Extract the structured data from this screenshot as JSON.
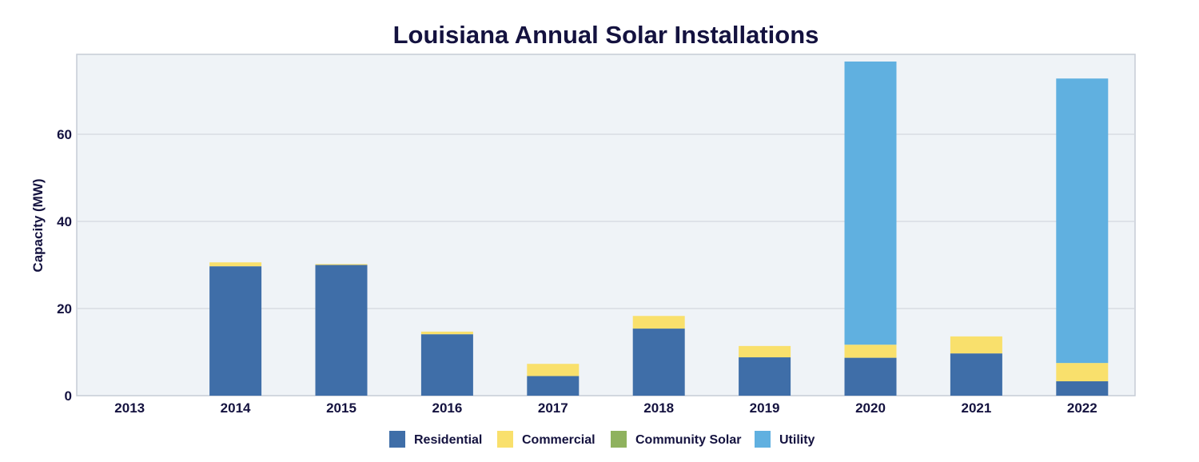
{
  "chart_data": {
    "type": "bar",
    "stacked": true,
    "title": "Louisiana Annual Solar Installations",
    "xlabel": "",
    "ylabel": "Capacity (MW)",
    "ylim": [
      0,
      77
    ],
    "yticks": [
      0,
      20,
      40,
      60
    ],
    "grid": true,
    "legend_position": "bottom-center",
    "categories": [
      "2013",
      "2014",
      "2015",
      "2016",
      "2017",
      "2018",
      "2019",
      "2020",
      "2021",
      "2022"
    ],
    "series": [
      {
        "name": "Residential",
        "color": "#3f6ea8",
        "values": [
          0,
          29.7,
          30.0,
          14.1,
          4.5,
          15.4,
          8.8,
          8.7,
          9.7,
          3.3
        ]
      },
      {
        "name": "Commercial",
        "color": "#f9e06c",
        "values": [
          0,
          0.9,
          0.2,
          0.6,
          2.8,
          2.9,
          2.6,
          3.0,
          3.9,
          4.2
        ]
      },
      {
        "name": "Community Solar",
        "color": "#8fb25e",
        "values": [
          0,
          0,
          0,
          0,
          0,
          0,
          0,
          0,
          0,
          0
        ]
      },
      {
        "name": "Utility",
        "color": "#60b0e0",
        "values": [
          0,
          0,
          0,
          0,
          0,
          0,
          0,
          65.0,
          0,
          65.3
        ]
      }
    ]
  }
}
